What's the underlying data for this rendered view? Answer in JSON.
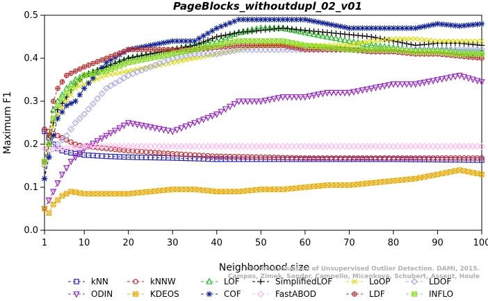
{
  "chart_data": {
    "type": "line",
    "title": "PageBlocks_withoutdupl_02_v01",
    "xlabel": "Neighborhood size",
    "ylabel": "Maximum F1",
    "xlim": [
      1,
      100
    ],
    "ylim": [
      0.0,
      0.5
    ],
    "xticks": [
      1,
      10,
      20,
      30,
      40,
      50,
      60,
      70,
      80,
      90,
      100
    ],
    "yticks": [
      0.0,
      0.1,
      0.2,
      0.3,
      0.4,
      0.5
    ],
    "ytick_labels": [
      "0.0",
      "0.1",
      "0.2",
      "0.3",
      "0.4",
      "0.5"
    ],
    "grid": false,
    "legend_position": "bottom",
    "watermark": [
      "Campos, Zimek, Sander, Campello, Micenkova, Schubert, Assent, Houle",
      "On the Evaluation of Unsupervised Outlier Detection. DAMI, 2015."
    ],
    "series": [
      {
        "name": "kNN",
        "color": "#2222cc",
        "marker": "square",
        "dash": "dash",
        "points": [
          [
            1,
            0.23
          ],
          [
            2,
            0.215
          ],
          [
            3,
            0.2
          ],
          [
            4,
            0.19
          ],
          [
            5,
            0.185
          ],
          [
            7,
            0.18
          ],
          [
            10,
            0.175
          ],
          [
            15,
            0.172
          ],
          [
            20,
            0.17
          ],
          [
            30,
            0.168
          ],
          [
            40,
            0.165
          ],
          [
            50,
            0.165
          ],
          [
            60,
            0.165
          ],
          [
            70,
            0.165
          ],
          [
            80,
            0.165
          ],
          [
            90,
            0.164
          ],
          [
            100,
            0.163
          ]
        ]
      },
      {
        "name": "kNNW",
        "color": "#cc2222",
        "marker": "circle",
        "dash": "dash",
        "points": [
          [
            1,
            0.235
          ],
          [
            2,
            0.23
          ],
          [
            3,
            0.225
          ],
          [
            4,
            0.22
          ],
          [
            6,
            0.21
          ],
          [
            8,
            0.2
          ],
          [
            10,
            0.195
          ],
          [
            15,
            0.19
          ],
          [
            20,
            0.185
          ],
          [
            30,
            0.178
          ],
          [
            40,
            0.172
          ],
          [
            50,
            0.17
          ],
          [
            60,
            0.168
          ],
          [
            70,
            0.168
          ],
          [
            80,
            0.168
          ],
          [
            90,
            0.168
          ],
          [
            100,
            0.168
          ]
        ]
      },
      {
        "name": "LOF",
        "color": "#22bb22",
        "marker": "triangle-up",
        "dash": "dash",
        "points": [
          [
            1,
            0.16
          ],
          [
            2,
            0.22
          ],
          [
            3,
            0.28
          ],
          [
            4,
            0.3
          ],
          [
            6,
            0.33
          ],
          [
            8,
            0.35
          ],
          [
            10,
            0.36
          ],
          [
            15,
            0.38
          ],
          [
            20,
            0.4
          ],
          [
            25,
            0.41
          ],
          [
            30,
            0.42
          ],
          [
            35,
            0.43
          ],
          [
            40,
            0.44
          ],
          [
            45,
            0.46
          ],
          [
            50,
            0.47
          ],
          [
            55,
            0.47
          ],
          [
            60,
            0.46
          ],
          [
            65,
            0.45
          ],
          [
            70,
            0.44
          ],
          [
            75,
            0.43
          ],
          [
            80,
            0.425
          ],
          [
            85,
            0.42
          ],
          [
            90,
            0.42
          ],
          [
            95,
            0.415
          ],
          [
            100,
            0.415
          ]
        ]
      },
      {
        "name": "SimplifiedLOF",
        "color": "#000000",
        "marker": "plus",
        "dash": "dash",
        "points": [
          [
            1,
            0.12
          ],
          [
            2,
            0.2
          ],
          [
            3,
            0.25
          ],
          [
            4,
            0.28
          ],
          [
            6,
            0.31
          ],
          [
            8,
            0.34
          ],
          [
            10,
            0.36
          ],
          [
            15,
            0.38
          ],
          [
            20,
            0.4
          ],
          [
            25,
            0.41
          ],
          [
            30,
            0.42
          ],
          [
            35,
            0.43
          ],
          [
            40,
            0.45
          ],
          [
            45,
            0.46
          ],
          [
            50,
            0.465
          ],
          [
            55,
            0.47
          ],
          [
            60,
            0.465
          ],
          [
            65,
            0.46
          ],
          [
            70,
            0.455
          ],
          [
            75,
            0.45
          ],
          [
            80,
            0.44
          ],
          [
            85,
            0.43
          ],
          [
            90,
            0.435
          ],
          [
            95,
            0.435
          ],
          [
            100,
            0.43
          ]
        ]
      },
      {
        "name": "LoOP",
        "color": "#dddd00",
        "marker": "x",
        "dash": "dash",
        "points": [
          [
            1,
            0.15
          ],
          [
            2,
            0.2
          ],
          [
            3,
            0.24
          ],
          [
            4,
            0.27
          ],
          [
            6,
            0.3
          ],
          [
            8,
            0.33
          ],
          [
            10,
            0.34
          ],
          [
            15,
            0.36
          ],
          [
            20,
            0.37
          ],
          [
            25,
            0.38
          ],
          [
            30,
            0.39
          ],
          [
            35,
            0.4
          ],
          [
            40,
            0.41
          ],
          [
            45,
            0.42
          ],
          [
            50,
            0.43
          ],
          [
            55,
            0.43
          ],
          [
            60,
            0.43
          ],
          [
            65,
            0.43
          ],
          [
            70,
            0.43
          ],
          [
            75,
            0.44
          ],
          [
            80,
            0.445
          ],
          [
            85,
            0.445
          ],
          [
            90,
            0.44
          ],
          [
            95,
            0.44
          ],
          [
            100,
            0.44
          ]
        ]
      },
      {
        "name": "LDOF",
        "color": "#aaaaee",
        "marker": "diamond",
        "dash": "dash",
        "points": [
          [
            1,
            0.15
          ],
          [
            2,
            0.17
          ],
          [
            3,
            0.19
          ],
          [
            4,
            0.2
          ],
          [
            6,
            0.22
          ],
          [
            8,
            0.25
          ],
          [
            10,
            0.27
          ],
          [
            15,
            0.33
          ],
          [
            20,
            0.36
          ],
          [
            25,
            0.38
          ],
          [
            30,
            0.4
          ],
          [
            35,
            0.41
          ],
          [
            40,
            0.41
          ],
          [
            45,
            0.42
          ],
          [
            50,
            0.42
          ],
          [
            55,
            0.42
          ],
          [
            60,
            0.42
          ],
          [
            65,
            0.42
          ],
          [
            70,
            0.42
          ],
          [
            75,
            0.42
          ],
          [
            80,
            0.42
          ],
          [
            85,
            0.42
          ],
          [
            90,
            0.42
          ],
          [
            95,
            0.42
          ],
          [
            100,
            0.42
          ]
        ]
      },
      {
        "name": "ODIN",
        "color": "#9922cc",
        "marker": "triangle-down",
        "dash": "dash",
        "points": [
          [
            1,
            0.05
          ],
          [
            2,
            0.07
          ],
          [
            3,
            0.09
          ],
          [
            5,
            0.13
          ],
          [
            7,
            0.16
          ],
          [
            10,
            0.19
          ],
          [
            15,
            0.22
          ],
          [
            20,
            0.25
          ],
          [
            25,
            0.24
          ],
          [
            30,
            0.23
          ],
          [
            35,
            0.25
          ],
          [
            40,
            0.27
          ],
          [
            45,
            0.3
          ],
          [
            50,
            0.3
          ],
          [
            55,
            0.31
          ],
          [
            60,
            0.31
          ],
          [
            65,
            0.32
          ],
          [
            70,
            0.32
          ],
          [
            75,
            0.33
          ],
          [
            80,
            0.34
          ],
          [
            85,
            0.34
          ],
          [
            90,
            0.35
          ],
          [
            95,
            0.36
          ],
          [
            100,
            0.345
          ]
        ]
      },
      {
        "name": "KDEOS",
        "color": "#eeaa00",
        "marker": "square-x",
        "dash": "dash",
        "points": [
          [
            1,
            0.05
          ],
          [
            2,
            0.04
          ],
          [
            3,
            0.06
          ],
          [
            5,
            0.08
          ],
          [
            7,
            0.09
          ],
          [
            10,
            0.085
          ],
          [
            15,
            0.085
          ],
          [
            20,
            0.085
          ],
          [
            25,
            0.09
          ],
          [
            30,
            0.095
          ],
          [
            35,
            0.095
          ],
          [
            40,
            0.09
          ],
          [
            45,
            0.09
          ],
          [
            50,
            0.095
          ],
          [
            55,
            0.095
          ],
          [
            60,
            0.1
          ],
          [
            65,
            0.105
          ],
          [
            70,
            0.105
          ],
          [
            75,
            0.11
          ],
          [
            80,
            0.115
          ],
          [
            85,
            0.12
          ],
          [
            90,
            0.13
          ],
          [
            95,
            0.14
          ],
          [
            100,
            0.13
          ]
        ]
      },
      {
        "name": "COF",
        "color": "#112299",
        "marker": "asterisk",
        "dash": "dash",
        "points": [
          [
            1,
            0.12
          ],
          [
            2,
            0.17
          ],
          [
            3,
            0.22
          ],
          [
            4,
            0.26
          ],
          [
            6,
            0.29
          ],
          [
            8,
            0.3
          ],
          [
            10,
            0.33
          ],
          [
            15,
            0.39
          ],
          [
            20,
            0.42
          ],
          [
            25,
            0.43
          ],
          [
            30,
            0.44
          ],
          [
            35,
            0.44
          ],
          [
            40,
            0.47
          ],
          [
            45,
            0.49
          ],
          [
            50,
            0.49
          ],
          [
            55,
            0.49
          ],
          [
            60,
            0.49
          ],
          [
            65,
            0.48
          ],
          [
            70,
            0.47
          ],
          [
            75,
            0.47
          ],
          [
            80,
            0.47
          ],
          [
            85,
            0.47
          ],
          [
            90,
            0.48
          ],
          [
            95,
            0.475
          ],
          [
            100,
            0.48
          ]
        ]
      },
      {
        "name": "FastABOD",
        "color": "#ffbbee",
        "marker": "diamond",
        "dash": "dash",
        "points": [
          [
            1,
            0.19
          ],
          [
            2,
            0.19
          ],
          [
            3,
            0.19
          ],
          [
            5,
            0.19
          ],
          [
            10,
            0.195
          ],
          [
            20,
            0.195
          ],
          [
            30,
            0.195
          ],
          [
            40,
            0.195
          ],
          [
            50,
            0.195
          ],
          [
            60,
            0.195
          ],
          [
            70,
            0.195
          ],
          [
            80,
            0.195
          ],
          [
            90,
            0.195
          ],
          [
            100,
            0.195
          ]
        ]
      },
      {
        "name": "LDF",
        "color": "#bb3333",
        "marker": "circle-plus",
        "dash": "dash",
        "points": [
          [
            1,
            0.16
          ],
          [
            2,
            0.22
          ],
          [
            3,
            0.3
          ],
          [
            4,
            0.33
          ],
          [
            6,
            0.36
          ],
          [
            8,
            0.37
          ],
          [
            10,
            0.38
          ],
          [
            15,
            0.4
          ],
          [
            20,
            0.42
          ],
          [
            25,
            0.42
          ],
          [
            30,
            0.42
          ],
          [
            35,
            0.42
          ],
          [
            40,
            0.425
          ],
          [
            45,
            0.43
          ],
          [
            50,
            0.43
          ],
          [
            55,
            0.43
          ],
          [
            60,
            0.42
          ],
          [
            65,
            0.42
          ],
          [
            70,
            0.42
          ],
          [
            75,
            0.415
          ],
          [
            80,
            0.415
          ],
          [
            85,
            0.41
          ],
          [
            90,
            0.41
          ],
          [
            95,
            0.405
          ],
          [
            100,
            0.4
          ]
        ]
      },
      {
        "name": "INFLO",
        "color": "#88dd22",
        "marker": "square-x",
        "dash": "dash",
        "points": [
          [
            1,
            0.16
          ],
          [
            2,
            0.2
          ],
          [
            3,
            0.26
          ],
          [
            4,
            0.29
          ],
          [
            6,
            0.32
          ],
          [
            8,
            0.34
          ],
          [
            10,
            0.36
          ],
          [
            15,
            0.37
          ],
          [
            20,
            0.39
          ],
          [
            25,
            0.4
          ],
          [
            30,
            0.41
          ],
          [
            35,
            0.42
          ],
          [
            40,
            0.43
          ],
          [
            45,
            0.44
          ],
          [
            50,
            0.44
          ],
          [
            55,
            0.44
          ],
          [
            60,
            0.43
          ],
          [
            65,
            0.425
          ],
          [
            70,
            0.42
          ],
          [
            75,
            0.42
          ],
          [
            80,
            0.42
          ],
          [
            85,
            0.415
          ],
          [
            90,
            0.415
          ],
          [
            95,
            0.41
          ],
          [
            100,
            0.41
          ]
        ]
      }
    ]
  }
}
